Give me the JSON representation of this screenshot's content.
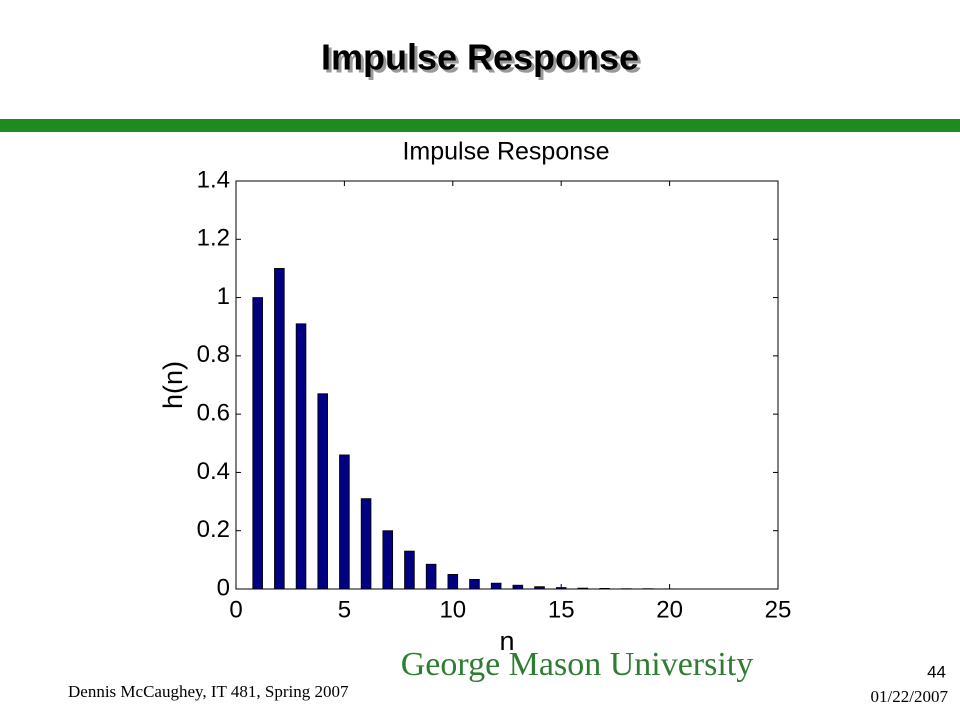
{
  "slide": {
    "title": "Impulse Response",
    "footer": "Dennis McCaughey, IT 481, Spring 2007",
    "page": "44",
    "date": "01/22/2007",
    "logo": "George Mason University"
  },
  "chart_data": {
    "type": "bar",
    "title": "Impulse Response",
    "x_label": "n",
    "y_label": "h(n)",
    "x": [
      1,
      2,
      3,
      4,
      5,
      6,
      7,
      8,
      9,
      10,
      11,
      12,
      13,
      14,
      15,
      16,
      17,
      18,
      19,
      20
    ],
    "values": [
      1.0,
      1.1,
      0.91,
      0.67,
      0.46,
      0.31,
      0.2,
      0.13,
      0.085,
      0.05,
      0.033,
      0.02,
      0.013,
      0.008,
      0.005,
      0.003,
      0.002,
      0.001,
      0.001,
      0.0005
    ],
    "color": "#000080",
    "xlim": [
      0,
      25
    ],
    "xticks": [
      0,
      5,
      10,
      15,
      20,
      25
    ],
    "ylim": [
      0,
      1.4
    ],
    "yticks": [
      0,
      0.2,
      0.4,
      0.6,
      0.8,
      1,
      1.2,
      1.4
    ],
    "grid": false
  }
}
